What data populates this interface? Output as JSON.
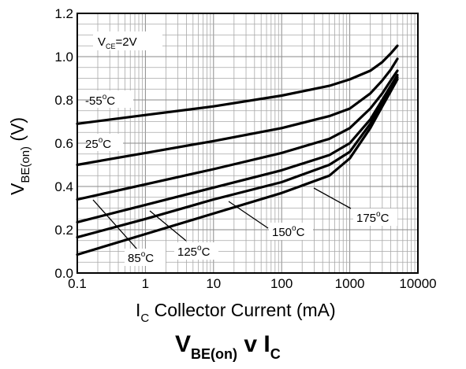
{
  "chart_data": {
    "type": "line",
    "title": {
      "main": "V",
      "sub": "BE(on)",
      "mid": " v I",
      "sub2": "C"
    },
    "xlabel": {
      "main": "I",
      "sub": "C",
      "rest": "   Collector Current (mA)"
    },
    "ylabel": {
      "main": "V",
      "sub": "BE(on)",
      "rest": " (V)"
    },
    "x_scale": "log",
    "xlim": [
      0.1,
      10000
    ],
    "ylim": [
      0.0,
      1.2
    ],
    "x_ticks": [
      0.1,
      1,
      10,
      100,
      1000,
      10000
    ],
    "x_tick_labels": [
      "0.1",
      "1",
      "10",
      "100",
      "1000",
      "10000"
    ],
    "y_ticks": [
      0.0,
      0.2,
      0.4,
      0.6,
      0.8,
      1.0,
      1.2
    ],
    "y_tick_labels": [
      "0.0",
      "0.2",
      "0.4",
      "0.6",
      "0.8",
      "1.0",
      "1.2"
    ],
    "grid": true,
    "condition": {
      "main": "V",
      "sub": "CE",
      "rest": "=2V"
    },
    "series": [
      {
        "name": "-55°C",
        "label_main": "-55",
        "label_sup": "o",
        "label_unit": "C",
        "x": [
          0.1,
          1,
          10,
          100,
          500,
          1000,
          2000,
          3000,
          4000,
          5000
        ],
        "y": [
          0.69,
          0.73,
          0.77,
          0.82,
          0.865,
          0.895,
          0.935,
          0.975,
          1.015,
          1.05
        ]
      },
      {
        "name": "25°C",
        "label_main": "25",
        "label_sup": "o",
        "label_unit": "C",
        "x": [
          0.1,
          1,
          10,
          100,
          500,
          1000,
          2000,
          3000,
          4000,
          5000
        ],
        "y": [
          0.5,
          0.555,
          0.61,
          0.67,
          0.725,
          0.76,
          0.83,
          0.89,
          0.94,
          0.99
        ]
      },
      {
        "name": "85°C",
        "label_main": "85",
        "label_sup": "o",
        "label_unit": "C",
        "x": [
          0.1,
          1,
          10,
          100,
          500,
          1000,
          2000,
          3000,
          4000,
          5000
        ],
        "y": [
          0.34,
          0.41,
          0.48,
          0.555,
          0.62,
          0.67,
          0.76,
          0.83,
          0.89,
          0.935
        ]
      },
      {
        "name": "125°C",
        "label_main": "125",
        "label_sup": "o",
        "label_unit": "C",
        "x": [
          0.1,
          1,
          10,
          100,
          500,
          1000,
          2000,
          3000,
          4000,
          5000
        ],
        "y": [
          0.235,
          0.315,
          0.395,
          0.475,
          0.545,
          0.6,
          0.71,
          0.8,
          0.865,
          0.915
        ]
      },
      {
        "name": "150°C",
        "label_main": "150",
        "label_sup": "o",
        "label_unit": "C",
        "x": [
          0.1,
          1,
          10,
          100,
          500,
          1000,
          2000,
          3000,
          4000,
          5000
        ],
        "y": [
          0.165,
          0.25,
          0.34,
          0.42,
          0.5,
          0.56,
          0.69,
          0.785,
          0.85,
          0.905
        ]
      },
      {
        "name": "175°C",
        "label_main": "175",
        "label_sup": "o",
        "label_unit": "C",
        "x": [
          0.1,
          1,
          10,
          100,
          500,
          1000,
          2000,
          3000,
          4000,
          5000
        ],
        "y": [
          0.085,
          0.18,
          0.275,
          0.37,
          0.45,
          0.53,
          0.67,
          0.77,
          0.84,
          0.895
        ]
      }
    ]
  }
}
